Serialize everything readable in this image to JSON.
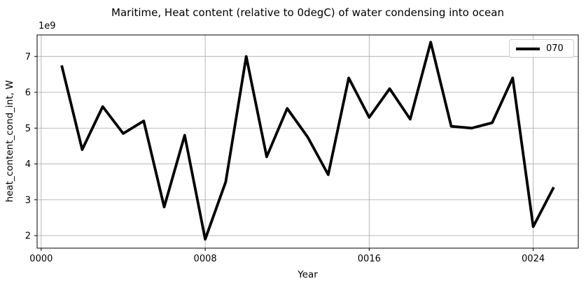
{
  "chart": {
    "title": "Maritime, Heat content (relative to 0degC) of water condensing into ocean",
    "xlabel": "Year",
    "ylabel": "heat_content_cond_int, W",
    "y_offset_label": "1e9",
    "legend": {
      "entries": [
        {
          "label": "070",
          "color": "#000000"
        }
      ],
      "position": "upper right"
    }
  },
  "chart_data": {
    "type": "line",
    "title": "Maritime, Heat content (relative to 0degC) of water condensing into ocean",
    "xlabel": "Year",
    "ylabel": "heat_content_cond_int, W",
    "y_unit_multiplier": "1e9",
    "xlim": [
      -0.2,
      26.2
    ],
    "ylim": [
      1.65,
      7.6
    ],
    "x_ticks": {
      "values": [
        0,
        8,
        16,
        24
      ],
      "labels": [
        "0000",
        "0008",
        "0016",
        "0024"
      ]
    },
    "y_ticks": {
      "values": [
        2,
        3,
        4,
        5,
        6,
        7
      ],
      "labels": [
        "2",
        "3",
        "4",
        "5",
        "6",
        "7"
      ]
    },
    "grid": true,
    "legend_position": "upper right",
    "series": [
      {
        "name": "070",
        "color": "#000000",
        "x": [
          1,
          2,
          3,
          4,
          5,
          6,
          7,
          8,
          9,
          10,
          11,
          12,
          13,
          14,
          15,
          16,
          17,
          18,
          19,
          20,
          21,
          22,
          23,
          24,
          25
        ],
        "values": [
          6.75,
          4.4,
          5.6,
          4.85,
          5.2,
          2.8,
          4.8,
          1.9,
          3.5,
          7.0,
          4.2,
          5.55,
          4.75,
          3.7,
          6.4,
          5.3,
          6.1,
          5.25,
          7.4,
          5.05,
          5.0,
          5.15,
          6.4,
          2.25,
          3.35
        ]
      }
    ]
  },
  "style": {
    "line_color": "#000000",
    "line_width": 3.8,
    "grid_color": "#b0b0b0",
    "axis_color": "#000000",
    "tick_label_color": "#000000",
    "background": "#ffffff",
    "legend_border_color": "#cccccc"
  }
}
